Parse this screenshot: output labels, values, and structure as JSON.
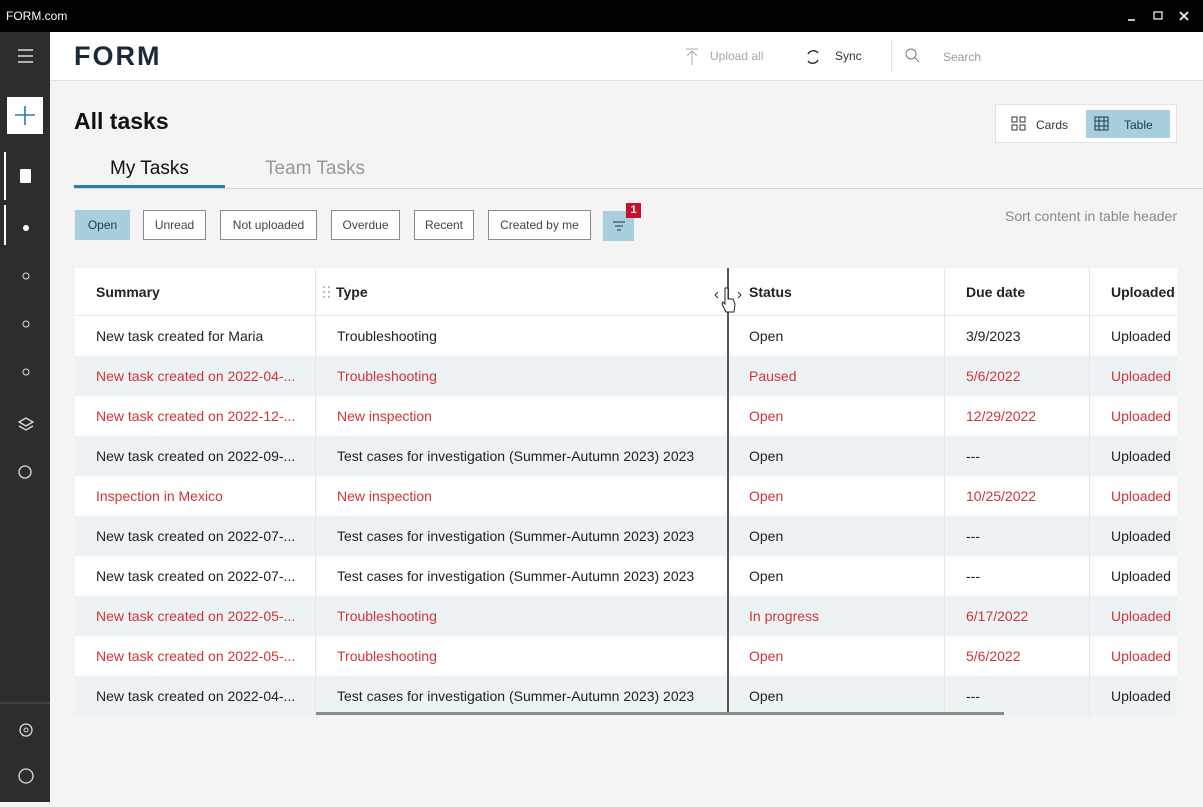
{
  "window": {
    "title": "FORM.com"
  },
  "header": {
    "logo": "FORM",
    "upload_all": "Upload all",
    "sync": "Sync",
    "search_placeholder": "Search"
  },
  "page": {
    "title": "All tasks",
    "view_toggle": [
      "Cards",
      "Table"
    ],
    "tabs": [
      "My Tasks",
      "Team Tasks"
    ],
    "filters": [
      "Open",
      "Unread",
      "Not uploaded",
      "Overdue",
      "Recent",
      "Created by me"
    ],
    "filter_badge": "1",
    "sort_hint": "Sort content in table header"
  },
  "table": {
    "columns": [
      "Summary",
      "Type",
      "Status",
      "Due date",
      "Uploaded"
    ],
    "rows": [
      {
        "cells": [
          "New task created for Maria",
          "Troubleshooting",
          "Open",
          "3/9/2023",
          "Uploaded"
        ],
        "color": "#222222"
      },
      {
        "cells": [
          "New task created on 2022-04-...",
          "Troubleshooting",
          "Paused",
          "5/6/2022",
          "Uploaded"
        ],
        "color": "#d13438"
      },
      {
        "cells": [
          "New task created on 2022-12-...",
          "New inspection",
          "Open",
          "12/29/2022",
          "Uploaded"
        ],
        "color": "#d13438"
      },
      {
        "cells": [
          "New task created on 2022-09-...",
          "Test cases for investigation (Summer-Autumn 2023) 2023",
          "Open",
          "---",
          "Uploaded"
        ],
        "color": "#222222"
      },
      {
        "cells": [
          "Inspection in Mexico",
          "New inspection",
          "Open",
          "10/25/2022",
          "Uploaded"
        ],
        "color": "#d13438"
      },
      {
        "cells": [
          "New task created on 2022-07-...",
          "Test cases for investigation (Summer-Autumn 2023) 2023",
          "Open",
          "---",
          "Uploaded"
        ],
        "color": "#222222"
      },
      {
        "cells": [
          "New task created on 2022-07-...",
          "Test cases for investigation (Summer-Autumn 2023) 2023",
          "Open",
          "---",
          "Uploaded"
        ],
        "color": "#222222"
      },
      {
        "cells": [
          "New task created on 2022-05-...",
          "Troubleshooting",
          "In progress",
          "6/17/2022",
          "Uploaded"
        ],
        "color": "#d13438"
      },
      {
        "cells": [
          "New task created on 2022-05-...",
          "Troubleshooting",
          "Open",
          "5/6/2022",
          "Uploaded"
        ],
        "color": "#d13438"
      },
      {
        "cells": [
          "New task created on 2022-04-...",
          "Test cases for investigation (Summer-Autumn 2023) 2023",
          "Open",
          "---",
          "Uploaded"
        ],
        "color": "#222222"
      }
    ]
  }
}
